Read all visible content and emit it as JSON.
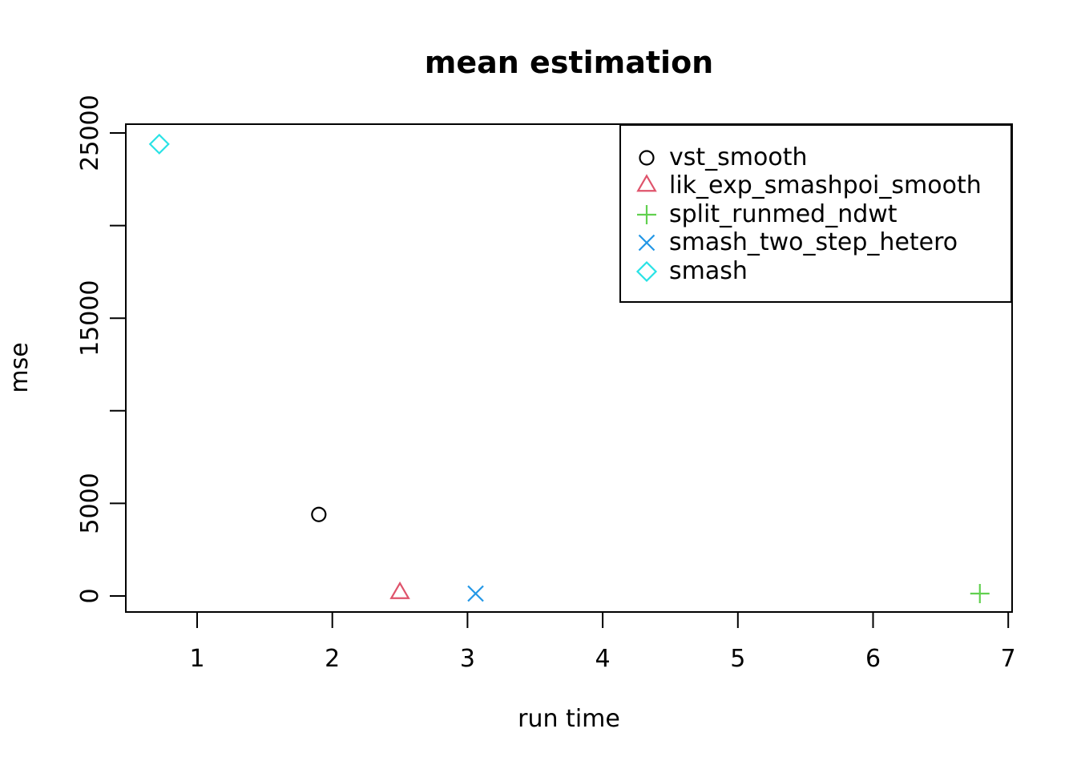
{
  "chart_data": {
    "type": "scatter",
    "title": "mean estimation",
    "xlabel": "run time",
    "ylabel": "mse",
    "xlim": [
      0.47,
      7.03
    ],
    "ylim": [
      -870,
      25480
    ],
    "grid": false,
    "legend_position": "topright",
    "x_ticks": [
      {
        "value": 1,
        "label": "1"
      },
      {
        "value": 2,
        "label": "2"
      },
      {
        "value": 3,
        "label": "3"
      },
      {
        "value": 4,
        "label": "4"
      },
      {
        "value": 5,
        "label": "5"
      },
      {
        "value": 6,
        "label": "6"
      },
      {
        "value": 7,
        "label": "7"
      }
    ],
    "y_ticks": [
      {
        "value": 0,
        "label": "0"
      },
      {
        "value": 5000,
        "label": "5000"
      },
      {
        "value": 10000,
        "label": ""
      },
      {
        "value": 15000,
        "label": "15000"
      },
      {
        "value": 20000,
        "label": ""
      },
      {
        "value": 25000,
        "label": "25000"
      }
    ],
    "series": [
      {
        "name": "vst_smooth",
        "marker": "circle",
        "color": "#000000",
        "points": [
          {
            "x": 1.9,
            "y": 4400
          }
        ]
      },
      {
        "name": "lik_exp_smashpoi_smooth",
        "marker": "triangle",
        "color": "#DF536B",
        "points": [
          {
            "x": 2.5,
            "y": 150
          }
        ]
      },
      {
        "name": "split_runmed_ndwt",
        "marker": "plus",
        "color": "#61D04F",
        "points": [
          {
            "x": 6.79,
            "y": 130
          }
        ]
      },
      {
        "name": "smash_two_step_hetero",
        "marker": "x",
        "color": "#2297E6",
        "points": [
          {
            "x": 3.06,
            "y": 130
          }
        ]
      },
      {
        "name": "smash",
        "marker": "diamond",
        "color": "#28E2E5",
        "points": [
          {
            "x": 0.72,
            "y": 24400
          }
        ]
      }
    ]
  }
}
